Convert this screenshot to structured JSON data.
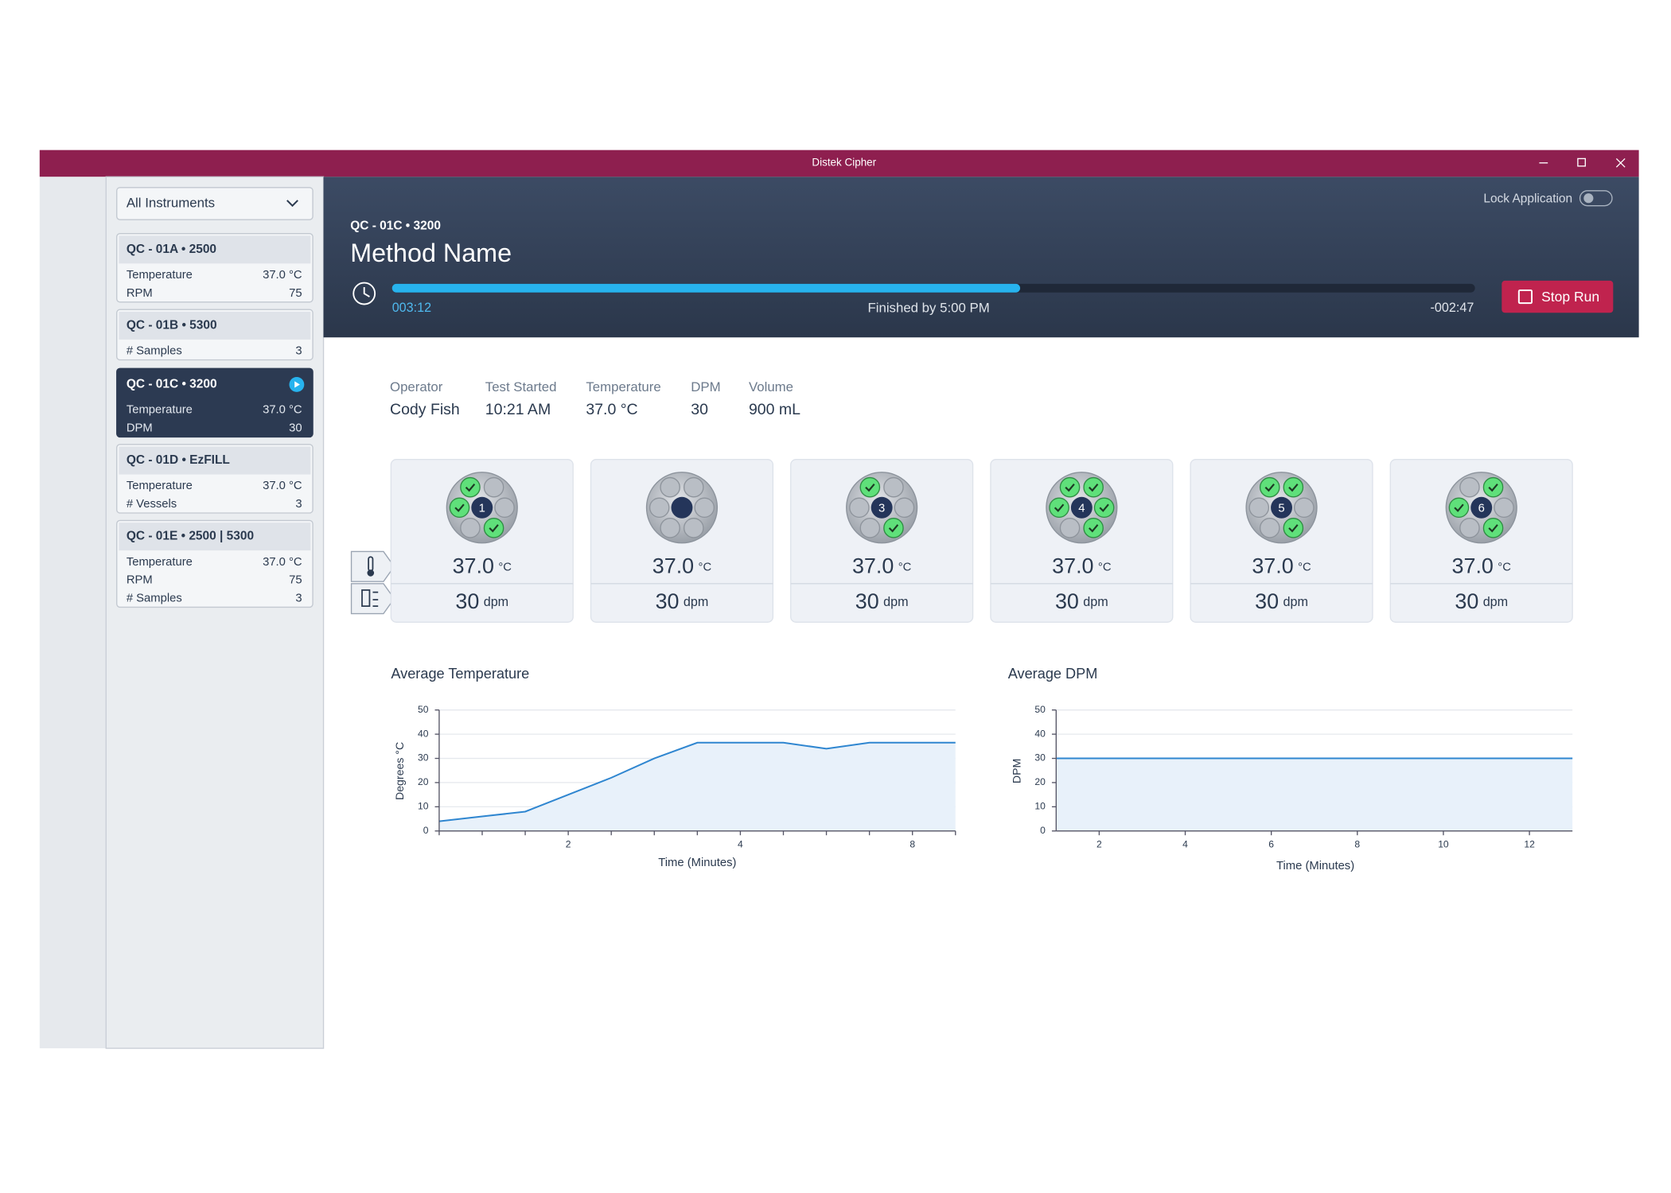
{
  "window": {
    "title": "Distek Cipher"
  },
  "sidebar": {
    "filter": "All Instruments",
    "instruments": [
      {
        "name": "QC - 01A • 2500",
        "rows": [
          {
            "label": "Temperature",
            "value": "37.0 °C"
          },
          {
            "label": "RPM",
            "value": "75"
          }
        ]
      },
      {
        "name": "QC - 01B • 5300",
        "rows": [
          {
            "label": "# Samples",
            "value": "3"
          }
        ]
      },
      {
        "name": "QC - 01C • 3200",
        "selected": true,
        "running": true,
        "rows": [
          {
            "label": "Temperature",
            "value": "37.0 °C"
          },
          {
            "label": "DPM",
            "value": "30"
          }
        ]
      },
      {
        "name": "QC - 01D • EzFILL",
        "rows": [
          {
            "label": "Temperature",
            "value": "37.0 °C"
          },
          {
            "label": "# Vessels",
            "value": "3"
          }
        ]
      },
      {
        "name": "QC - 01E • 2500 | 5300",
        "rows": [
          {
            "label": "Temperature",
            "value": "37.0 °C"
          },
          {
            "label": "RPM",
            "value": "75"
          },
          {
            "label": "# Samples",
            "value": "3"
          }
        ]
      }
    ]
  },
  "header": {
    "instrument": "QC - 01C • 3200",
    "method": "Method Name",
    "lock": "Lock Application",
    "elapsed": "003:12",
    "finished": "Finished by 5:00 PM",
    "remaining": "-002:47",
    "stop": "Stop Run",
    "progress": 0.58
  },
  "info": [
    {
      "label": "Operator",
      "value": "Cody Fish"
    },
    {
      "label": "Test Started",
      "value": "10:21 AM"
    },
    {
      "label": "Temperature",
      "value": "37.0 °C"
    },
    {
      "label": "DPM",
      "value": "30"
    },
    {
      "label": "Volume",
      "value": "900 mL"
    }
  ],
  "vessels": {
    "temp_unit": "°C",
    "dpm_unit": "dpm",
    "items": [
      {
        "number": "1",
        "temperature": "37.0",
        "dpm": "30",
        "checked": [
          0,
          5,
          3
        ]
      },
      {
        "number": null,
        "temperature": "37.0",
        "dpm": "30",
        "checked": []
      },
      {
        "number": "3",
        "temperature": "37.0",
        "dpm": "30",
        "checked": [
          0,
          3
        ]
      },
      {
        "number": "4",
        "temperature": "37.0",
        "dpm": "30",
        "checked": [
          0,
          1,
          5,
          2,
          3
        ]
      },
      {
        "number": "5",
        "temperature": "37.0",
        "dpm": "30",
        "checked": [
          0,
          1,
          3
        ]
      },
      {
        "number": "6",
        "temperature": "37.0",
        "dpm": "30",
        "checked": [
          1,
          5,
          3
        ]
      }
    ]
  },
  "chart_data": [
    {
      "type": "line",
      "title": "Average Temperature",
      "ylabel": "Degrees °C",
      "xlabel": "Time (Minutes)",
      "categories": [
        null,
        null,
        null,
        "2",
        null,
        null,
        null,
        "4",
        null,
        null,
        null,
        "8",
        null
      ],
      "values": [
        4,
        6,
        8,
        15,
        22,
        30,
        36.5,
        36.5,
        36.5,
        34,
        36.5,
        36.5,
        36.5
      ],
      "ylim": [
        0,
        50
      ],
      "yticks": [
        0,
        10,
        20,
        30,
        40,
        50
      ],
      "grid": true,
      "color": "#2f86d0"
    },
    {
      "type": "line",
      "title": "Average DPM",
      "ylabel": "DPM",
      "xlabel": "Time (Minutes)",
      "x": [
        1,
        13
      ],
      "values": [
        30,
        30
      ],
      "xlim": [
        1,
        13
      ],
      "xticks": [
        2,
        4,
        6,
        8,
        10,
        12
      ],
      "ylim": [
        0,
        50
      ],
      "yticks": [
        0,
        10,
        20,
        30,
        40,
        50
      ],
      "grid": true,
      "color": "#2f86d0"
    }
  ]
}
